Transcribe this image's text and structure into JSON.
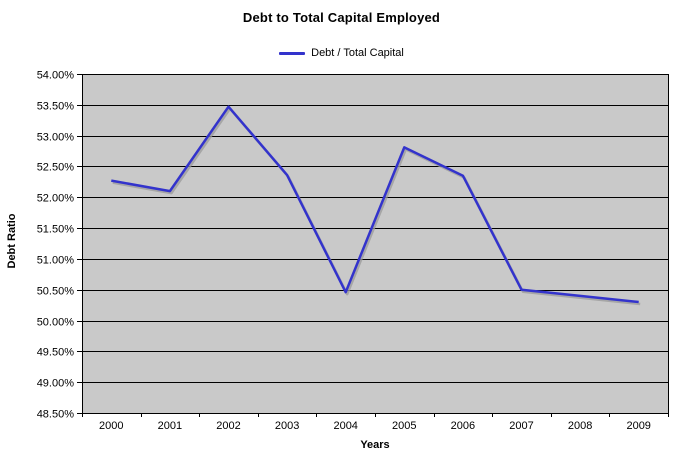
{
  "chart_data": {
    "type": "line",
    "title": "Debt to Total Capital Employed",
    "xlabel": "Years",
    "ylabel": "Debt Ratio",
    "categories": [
      "2000",
      "2001",
      "2002",
      "2003",
      "2004",
      "2005",
      "2006",
      "2007",
      "2008",
      "2009"
    ],
    "series": [
      {
        "name": "Debt / Total Capital",
        "values": [
          52.27,
          52.1,
          53.47,
          52.36,
          50.46,
          52.81,
          52.35,
          50.5,
          50.4,
          50.3
        ],
        "color": "#3333cc"
      }
    ],
    "legend": {
      "position": "top",
      "entries": [
        {
          "label": "Debt / Total Capital",
          "color": "#3333cc"
        }
      ]
    },
    "ylim": [
      48.5,
      54.0
    ],
    "ytick_step": 0.5,
    "ytick_format": "percent-2-decimals",
    "ytick_labels": [
      "48.50%",
      "49.00%",
      "49.50%",
      "50.00%",
      "50.50%",
      "51.00%",
      "51.50%",
      "52.00%",
      "52.50%",
      "53.00%",
      "53.50%",
      "54.00%"
    ],
    "grid": true,
    "colors": {
      "plot_background": "#c9c9c9",
      "gridline": "#000000",
      "axis": "#000000",
      "line_shadow": "#9a9a9a",
      "text": "#000000",
      "page_background": "#ffffff"
    }
  }
}
